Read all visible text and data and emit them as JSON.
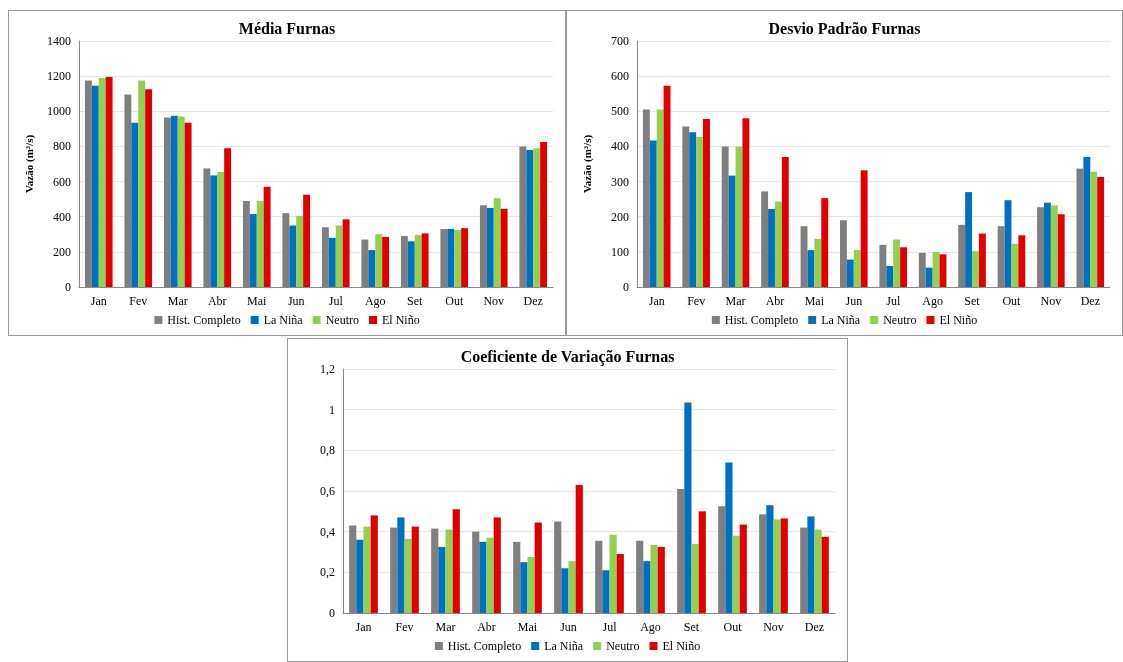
{
  "chart_data": [
    {
      "type": "bar",
      "title": "Média Furnas",
      "ylabel": "Vazão (m³/s)",
      "categories": [
        "Jan",
        "Fev",
        "Mar",
        "Abr",
        "Mai",
        "Jun",
        "Jul",
        "Ago",
        "Set",
        "Out",
        "Nov",
        "Dez"
      ],
      "series": [
        {
          "name": "Hist. Completo",
          "color": "#7f7f7f",
          "values": [
            1175,
            1095,
            965,
            675,
            490,
            420,
            340,
            270,
            290,
            330,
            465,
            800
          ]
        },
        {
          "name": "La Niña",
          "color": "#0070c0",
          "values": [
            1145,
            935,
            975,
            635,
            415,
            350,
            280,
            210,
            260,
            330,
            450,
            780
          ]
        },
        {
          "name": "Neutro",
          "color": "#92d050",
          "values": [
            1190,
            1175,
            970,
            655,
            490,
            405,
            350,
            300,
            295,
            325,
            505,
            790
          ]
        },
        {
          "name": "El Niño",
          "color": "#e00000",
          "values": [
            1195,
            1125,
            935,
            790,
            570,
            525,
            385,
            285,
            305,
            335,
            445,
            825
          ]
        }
      ],
      "ylim": [
        0,
        1400
      ],
      "yticks": [
        0,
        200,
        400,
        600,
        800,
        1000,
        1200,
        1400
      ],
      "grid": "y",
      "legend": "bottom"
    },
    {
      "type": "bar",
      "title": "Desvio Padrão Furnas",
      "ylabel": "Vazão (m³/s)",
      "categories": [
        "Jan",
        "Fev",
        "Mar",
        "Abr",
        "Mai",
        "Jun",
        "Jul",
        "Ago",
        "Set",
        "Out",
        "Nov",
        "Dez"
      ],
      "series": [
        {
          "name": "Hist. Completo",
          "color": "#7f7f7f",
          "values": [
            505,
            457,
            400,
            272,
            173,
            190,
            120,
            97,
            177,
            173,
            227,
            337
          ]
        },
        {
          "name": "La Niña",
          "color": "#0070c0",
          "values": [
            417,
            440,
            317,
            222,
            105,
            78,
            60,
            55,
            270,
            247,
            240,
            370
          ]
        },
        {
          "name": "Neutro",
          "color": "#92d050",
          "values": [
            505,
            427,
            400,
            243,
            137,
            105,
            135,
            100,
            102,
            123,
            232,
            328
          ]
        },
        {
          "name": "El Niño",
          "color": "#e00000",
          "values": [
            573,
            478,
            480,
            370,
            253,
            332,
            113,
            93,
            152,
            147,
            207,
            313
          ]
        }
      ],
      "ylim": [
        0,
        700
      ],
      "yticks": [
        0,
        100,
        200,
        300,
        400,
        500,
        600,
        700
      ],
      "grid": "y",
      "legend": "bottom"
    },
    {
      "type": "bar",
      "title": "Coeficiente de Variação Furnas",
      "categories": [
        "Jan",
        "Fev",
        "Mar",
        "Abr",
        "Mai",
        "Jun",
        "Jul",
        "Ago",
        "Set",
        "Out",
        "Nov",
        "Dez"
      ],
      "series": [
        {
          "name": "Hist. Completo",
          "color": "#7f7f7f",
          "values": [
            0.43,
            0.42,
            0.415,
            0.4,
            0.35,
            0.45,
            0.355,
            0.355,
            0.61,
            0.525,
            0.485,
            0.42
          ]
        },
        {
          "name": "La Niña",
          "color": "#0070c0",
          "values": [
            0.36,
            0.47,
            0.325,
            0.35,
            0.25,
            0.22,
            0.21,
            0.255,
            1.035,
            0.74,
            0.53,
            0.475
          ]
        },
        {
          "name": "Neutro",
          "color": "#92d050",
          "values": [
            0.425,
            0.365,
            0.41,
            0.37,
            0.275,
            0.255,
            0.385,
            0.335,
            0.34,
            0.38,
            0.46,
            0.41
          ]
        },
        {
          "name": "El Niño",
          "color": "#e00000",
          "values": [
            0.48,
            0.425,
            0.51,
            0.47,
            0.445,
            0.63,
            0.29,
            0.325,
            0.5,
            0.435,
            0.465,
            0.375
          ]
        }
      ],
      "ylim": [
        0,
        1.2
      ],
      "yticks": [
        0,
        {
          "value": 0.2,
          "label": "0,2"
        },
        {
          "value": 0.4,
          "label": "0,4"
        },
        {
          "value": 0.6,
          "label": "0,6"
        },
        {
          "value": 0.8,
          "label": "0,8"
        },
        1,
        {
          "value": 1.2,
          "label": "1,2"
        }
      ],
      "grid": "y",
      "legend": "bottom"
    }
  ]
}
